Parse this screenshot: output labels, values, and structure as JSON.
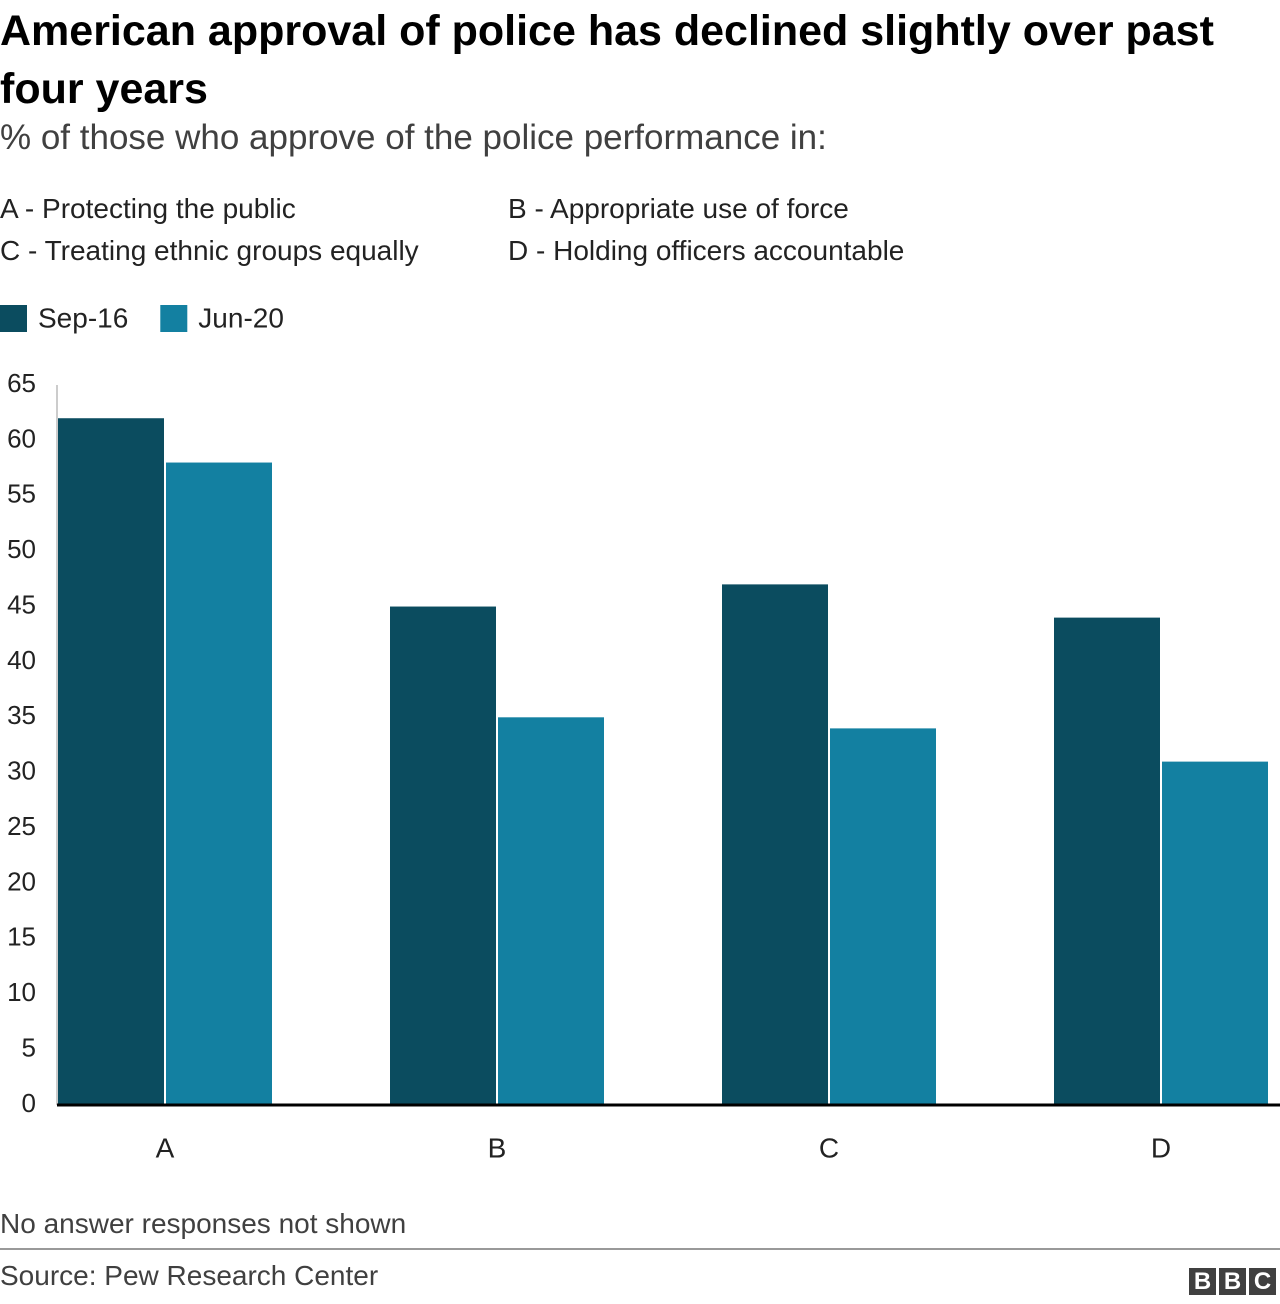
{
  "chart_data": {
    "type": "bar",
    "title": "American approval of police has declined slightly over past four years",
    "subtitle": "% of those who approve of the police performance in:",
    "notes": [
      "A - Protecting the public",
      "B - Appropriate use of force",
      "C - Treating ethnic groups equally",
      "D - Holding officers accountable"
    ],
    "categories": [
      "A",
      "B",
      "C",
      "D"
    ],
    "series": [
      {
        "name": "Sep-16",
        "color": "#0b4c5f",
        "values": [
          62,
          45,
          47,
          44
        ]
      },
      {
        "name": "Jun-20",
        "color": "#1380a1",
        "values": [
          58,
          35,
          34,
          31
        ]
      }
    ],
    "ylim": [
      0,
      65
    ],
    "yticks": [
      0,
      5,
      10,
      15,
      20,
      25,
      30,
      35,
      40,
      45,
      50,
      55,
      60,
      65
    ],
    "grid": false,
    "footnote": "No answer responses not shown",
    "source": "Source: Pew Research Center",
    "logo": [
      "B",
      "B",
      "C"
    ]
  }
}
